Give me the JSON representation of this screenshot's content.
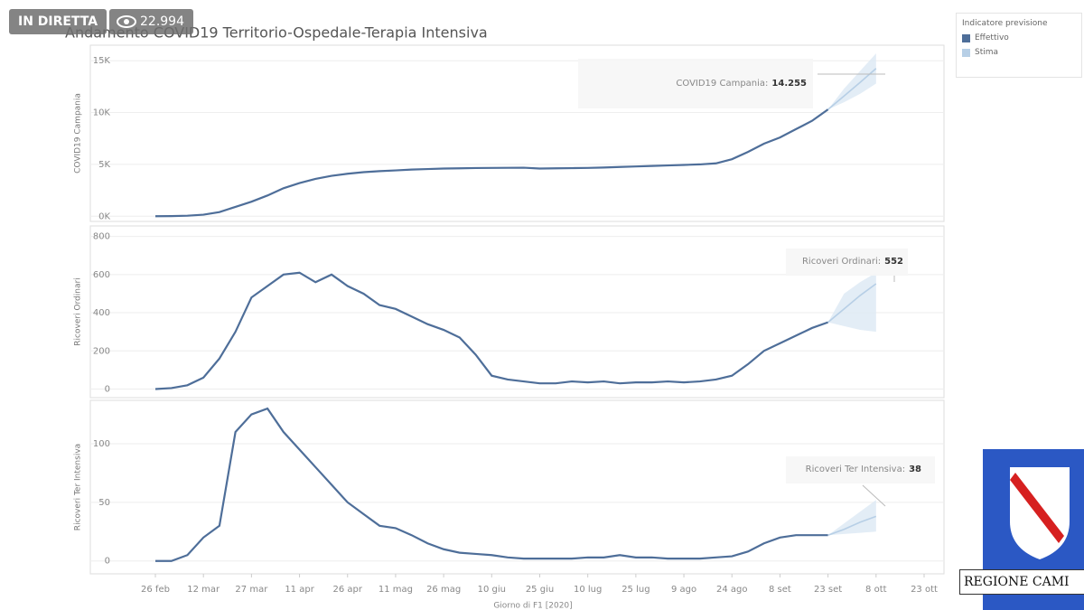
{
  "overlay": {
    "live": "IN DIRETTA",
    "views": "22.994",
    "logo": "REGIONE CAMI"
  },
  "legend_title": "Indicatore previsione",
  "chart_data": [
    {
      "type": "line",
      "title": "Andamento COVID19 Territorio-Ospedale-Terapia Intensiva",
      "ylabel": "COVID19 Campania",
      "annotation": "COVID19 Campania:",
      "x": [
        "26 feb",
        "2 mar",
        "7 mar",
        "12 mar",
        "17 mar",
        "22 mar",
        "27 mar",
        "1 apr",
        "6 apr",
        "11 apr",
        "16 apr",
        "21 apr",
        "26 apr",
        "1 mag",
        "6 mag",
        "11 mag",
        "16 mag",
        "21 mag",
        "26 mag",
        "31 mag",
        "5 giu",
        "10 giu",
        "15 giu",
        "20 giu",
        "25 giu",
        "30 giu",
        "5 lug",
        "10 lug",
        "15 lug",
        "20 lug",
        "25 lug",
        "30 lug",
        "4 ago",
        "9 ago",
        "14 ago",
        "19 ago",
        "24 ago",
        "29 ago",
        "3 set",
        "8 set",
        "13 set",
        "18 set",
        "23 set",
        "28 set",
        "3 ott",
        "8 ott",
        "13 ott",
        "18 ott",
        "23 ott"
      ],
      "ylim": [
        -500,
        16500
      ],
      "yticks": [
        {
          "value": 0,
          "label": "0K"
        },
        {
          "value": 5000,
          "label": "5K"
        },
        {
          "value": 10000,
          "label": "10K"
        },
        {
          "value": 15000,
          "label": "15K"
        }
      ],
      "grid": true,
      "series": [
        {
          "name": "Effettivo",
          "color": "#4e6e99",
          "values": [
            0,
            10,
            50,
            150,
            400,
            900,
            1400,
            2000,
            2700,
            3200,
            3600,
            3900,
            4100,
            4250,
            4350,
            4420,
            4500,
            4550,
            4600,
            4620,
            4650,
            4660,
            4670,
            4680,
            4600,
            4620,
            4640,
            4660,
            4700,
            4750,
            4800,
            4850,
            4900,
            4950,
            5000,
            5100,
            5500,
            6200,
            7000,
            7600,
            8400,
            9200,
            10300,
            null,
            null,
            null,
            null,
            null,
            null
          ]
        },
        {
          "name": "Stima",
          "color": "#b7cfe6",
          "values": [
            null,
            null,
            null,
            null,
            null,
            null,
            null,
            null,
            null,
            null,
            null,
            null,
            null,
            null,
            null,
            null,
            null,
            null,
            null,
            null,
            null,
            null,
            null,
            null,
            null,
            null,
            null,
            null,
            null,
            null,
            null,
            null,
            null,
            null,
            null,
            null,
            null,
            null,
            null,
            null,
            null,
            null,
            10300,
            11600,
            12900,
            14255,
            null,
            null,
            null
          ],
          "value_labels": [
            null,
            null,
            null,
            null,
            null,
            null,
            null,
            null,
            null,
            null,
            null,
            null,
            null,
            null,
            null,
            null,
            null,
            null,
            null,
            null,
            null,
            null,
            null,
            null,
            null,
            null,
            null,
            null,
            null,
            null,
            null,
            null,
            null,
            null,
            null,
            null,
            null,
            null,
            null,
            null,
            null,
            null,
            null,
            null,
            null,
            "14.255",
            null,
            null,
            null
          ],
          "lower": [
            null,
            null,
            null,
            null,
            null,
            null,
            null,
            null,
            null,
            null,
            null,
            null,
            null,
            null,
            null,
            null,
            null,
            null,
            null,
            null,
            null,
            null,
            null,
            null,
            null,
            null,
            null,
            null,
            null,
            null,
            null,
            null,
            null,
            null,
            null,
            null,
            null,
            null,
            null,
            null,
            null,
            null,
            10300,
            11000,
            11800,
            12800,
            null,
            null,
            null
          ],
          "upper": [
            null,
            null,
            null,
            null,
            null,
            null,
            null,
            null,
            null,
            null,
            null,
            null,
            null,
            null,
            null,
            null,
            null,
            null,
            null,
            null,
            null,
            null,
            null,
            null,
            null,
            null,
            null,
            null,
            null,
            null,
            null,
            null,
            null,
            null,
            null,
            null,
            null,
            null,
            null,
            null,
            null,
            null,
            10300,
            12300,
            14000,
            15700,
            null,
            null,
            null
          ]
        }
      ]
    },
    {
      "type": "line",
      "ylabel": "Ricoveri Ordinari",
      "annotation": "Ricoveri Ordinari:",
      "x": [
        "26 feb",
        "2 mar",
        "7 mar",
        "12 mar",
        "17 mar",
        "22 mar",
        "27 mar",
        "1 apr",
        "6 apr",
        "11 apr",
        "16 apr",
        "21 apr",
        "26 apr",
        "1 mag",
        "6 mag",
        "11 mag",
        "16 mag",
        "21 mag",
        "26 mag",
        "31 mag",
        "5 giu",
        "10 giu",
        "15 giu",
        "20 giu",
        "25 giu",
        "30 giu",
        "5 lug",
        "10 lug",
        "15 lug",
        "20 lug",
        "25 lug",
        "30 lug",
        "4 ago",
        "9 ago",
        "14 ago",
        "19 ago",
        "24 ago",
        "29 ago",
        "3 set",
        "8 set",
        "13 set",
        "18 set",
        "23 set",
        "28 set",
        "3 ott",
        "8 ott",
        "13 ott",
        "18 ott",
        "23 ott"
      ],
      "ylim": [
        -45,
        855
      ],
      "yticks": [
        0,
        200,
        400,
        600,
        800
      ],
      "grid": true,
      "series": [
        {
          "name": "Effettivo",
          "color": "#4e6e99",
          "values": [
            0,
            5,
            20,
            60,
            160,
            300,
            480,
            540,
            600,
            610,
            560,
            600,
            540,
            500,
            440,
            420,
            380,
            340,
            310,
            270,
            180,
            70,
            50,
            40,
            30,
            30,
            40,
            35,
            40,
            30,
            35,
            35,
            40,
            35,
            40,
            50,
            70,
            130,
            200,
            240,
            280,
            320,
            350,
            null,
            null,
            null,
            null,
            null,
            null
          ]
        },
        {
          "name": "Stima",
          "color": "#b7cfe6",
          "values": [
            null,
            null,
            null,
            null,
            null,
            null,
            null,
            null,
            null,
            null,
            null,
            null,
            null,
            null,
            null,
            null,
            null,
            null,
            null,
            null,
            null,
            null,
            null,
            null,
            null,
            null,
            null,
            null,
            null,
            null,
            null,
            null,
            null,
            null,
            null,
            null,
            null,
            null,
            null,
            null,
            null,
            null,
            350,
            420,
            490,
            552,
            null,
            null,
            null
          ],
          "value_labels": [
            null,
            null,
            null,
            null,
            null,
            null,
            null,
            null,
            null,
            null,
            null,
            null,
            null,
            null,
            null,
            null,
            null,
            null,
            null,
            null,
            null,
            null,
            null,
            null,
            null,
            null,
            null,
            null,
            null,
            null,
            null,
            null,
            null,
            null,
            null,
            null,
            null,
            null,
            null,
            null,
            null,
            null,
            null,
            null,
            null,
            "552",
            null,
            null,
            null
          ],
          "lower": [
            null,
            null,
            null,
            null,
            null,
            null,
            null,
            null,
            null,
            null,
            null,
            null,
            null,
            null,
            null,
            null,
            null,
            null,
            null,
            null,
            null,
            null,
            null,
            null,
            null,
            null,
            null,
            null,
            null,
            null,
            null,
            null,
            null,
            null,
            null,
            null,
            null,
            null,
            null,
            null,
            null,
            null,
            350,
            330,
            310,
            300,
            null,
            null,
            null
          ],
          "upper": [
            null,
            null,
            null,
            null,
            null,
            null,
            null,
            null,
            null,
            null,
            null,
            null,
            null,
            null,
            null,
            null,
            null,
            null,
            null,
            null,
            null,
            null,
            null,
            null,
            null,
            null,
            null,
            null,
            null,
            null,
            null,
            null,
            null,
            null,
            null,
            null,
            null,
            null,
            null,
            null,
            null,
            null,
            350,
            500,
            560,
            610,
            null,
            null,
            null
          ]
        }
      ]
    },
    {
      "type": "line",
      "ylabel": "Ricoveri Ter Intensiva",
      "annotation": "Ricoveri Ter Intensiva:",
      "xlabel": "Giorno di F1 [2020]",
      "x": [
        "26 feb",
        "2 mar",
        "7 mar",
        "12 mar",
        "17 mar",
        "22 mar",
        "27 mar",
        "1 apr",
        "6 apr",
        "11 apr",
        "16 apr",
        "21 apr",
        "26 apr",
        "1 mag",
        "6 mag",
        "11 mag",
        "16 mag",
        "21 mag",
        "26 mag",
        "31 mag",
        "5 giu",
        "10 giu",
        "15 giu",
        "20 giu",
        "25 giu",
        "30 giu",
        "5 lug",
        "10 lug",
        "15 lug",
        "20 lug",
        "25 lug",
        "30 lug",
        "4 ago",
        "9 ago",
        "14 ago",
        "19 ago",
        "24 ago",
        "29 ago",
        "3 set",
        "8 set",
        "13 set",
        "18 set",
        "23 set",
        "28 set",
        "3 ott",
        "8 ott",
        "13 ott",
        "18 ott",
        "23 ott"
      ],
      "xticks": [
        "26 feb",
        "12 mar",
        "27 mar",
        "11 apr",
        "26 apr",
        "11 mag",
        "26 mag",
        "10 giu",
        "25 giu",
        "10 lug",
        "25 lug",
        "9 ago",
        "24 ago",
        "8 set",
        "23 set",
        "8 ott",
        "23 ott"
      ],
      "ylim": [
        -11,
        137
      ],
      "yticks": [
        0,
        50,
        100
      ],
      "grid": true,
      "series": [
        {
          "name": "Effettivo",
          "color": "#4e6e99",
          "values": [
            0,
            0,
            5,
            20,
            30,
            110,
            125,
            130,
            110,
            95,
            80,
            65,
            50,
            40,
            30,
            28,
            22,
            15,
            10,
            7,
            6,
            5,
            3,
            2,
            2,
            2,
            2,
            3,
            3,
            5,
            3,
            3,
            2,
            2,
            2,
            3,
            4,
            8,
            15,
            20,
            22,
            22,
            22,
            null,
            null,
            null,
            null,
            null,
            null
          ]
        },
        {
          "name": "Stima",
          "color": "#b7cfe6",
          "values": [
            null,
            null,
            null,
            null,
            null,
            null,
            null,
            null,
            null,
            null,
            null,
            null,
            null,
            null,
            null,
            null,
            null,
            null,
            null,
            null,
            null,
            null,
            null,
            null,
            null,
            null,
            null,
            null,
            null,
            null,
            null,
            null,
            null,
            null,
            null,
            null,
            null,
            null,
            null,
            null,
            null,
            null,
            22,
            27,
            33,
            38,
            null,
            null,
            null
          ],
          "value_labels": [
            null,
            null,
            null,
            null,
            null,
            null,
            null,
            null,
            null,
            null,
            null,
            null,
            null,
            null,
            null,
            null,
            null,
            null,
            null,
            null,
            null,
            null,
            null,
            null,
            null,
            null,
            null,
            null,
            null,
            null,
            null,
            null,
            null,
            null,
            null,
            null,
            null,
            null,
            null,
            null,
            null,
            null,
            null,
            null,
            null,
            "38",
            null,
            null,
            null
          ],
          "lower": [
            null,
            null,
            null,
            null,
            null,
            null,
            null,
            null,
            null,
            null,
            null,
            null,
            null,
            null,
            null,
            null,
            null,
            null,
            null,
            null,
            null,
            null,
            null,
            null,
            null,
            null,
            null,
            null,
            null,
            null,
            null,
            null,
            null,
            null,
            null,
            null,
            null,
            null,
            null,
            null,
            null,
            null,
            22,
            23,
            24,
            25,
            null,
            null,
            null
          ],
          "upper": [
            null,
            null,
            null,
            null,
            null,
            null,
            null,
            null,
            null,
            null,
            null,
            null,
            null,
            null,
            null,
            null,
            null,
            null,
            null,
            null,
            null,
            null,
            null,
            null,
            null,
            null,
            null,
            null,
            null,
            null,
            null,
            null,
            null,
            null,
            null,
            null,
            null,
            null,
            null,
            null,
            null,
            null,
            22,
            32,
            42,
            52,
            null,
            null,
            null
          ]
        }
      ]
    }
  ]
}
